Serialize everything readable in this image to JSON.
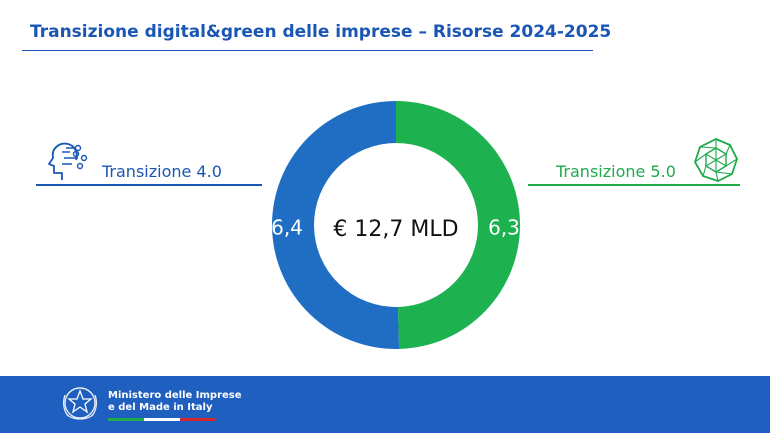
{
  "header": {
    "title": "Transizione digital&green delle imprese – Risorse 2024-2025"
  },
  "chart_data": {
    "type": "pie",
    "variant": "donut",
    "center_label": "€ 12,7 MLD",
    "slices": [
      {
        "name": "Transizione 4.0",
        "value": 6.4,
        "value_label": "6,4",
        "color": "#1f6ec4"
      },
      {
        "name": "Transizione 5.0",
        "value": 6.3,
        "value_label": "6,3",
        "color": "#1db14f"
      }
    ]
  },
  "legend": {
    "left": {
      "label": "Transizione 4.0",
      "icon": "ai-head-icon"
    },
    "right": {
      "label": "Transizione 5.0",
      "icon": "green-polyhedron-icon"
    }
  },
  "footer": {
    "ministry_line1": "Ministero delle Imprese",
    "ministry_line2": "e del Made in Italy",
    "emblem": "italian-republic-emblem",
    "flag_colors": [
      "#1faa4c",
      "#ffffff",
      "#d9262b"
    ]
  }
}
